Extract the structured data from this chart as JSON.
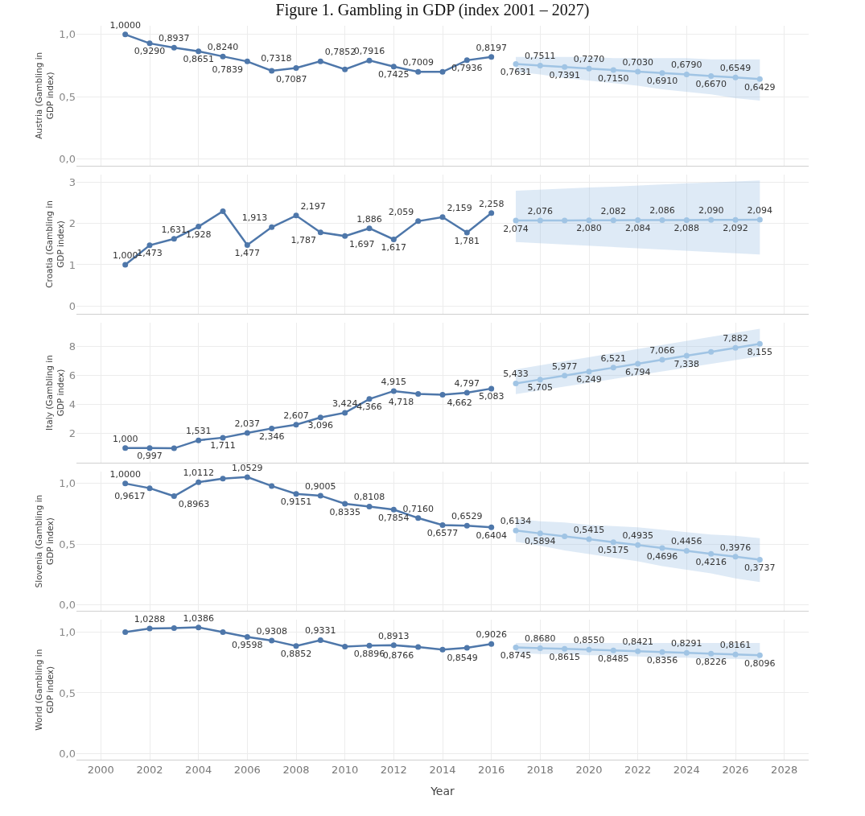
{
  "chart_data": [
    {
      "type": "line",
      "title": "Figure 1. Gambling in GDP (index 2001 – 2027)",
      "ylabel": "Austria (Gambling in GDP index)",
      "xlim": [
        1999,
        2029
      ],
      "xticks": [
        2000,
        2002,
        2004,
        2006,
        2008,
        2010,
        2012,
        2014,
        2016,
        2018,
        2020,
        2022,
        2024,
        2026,
        2028
      ],
      "ylim": [
        -0.05,
        1.07
      ],
      "yticks": [
        {
          "value": 0,
          "label": "0,0"
        },
        {
          "value": 0.5,
          "label": "0,5"
        },
        {
          "value": 1,
          "label": "1,0"
        }
      ],
      "tick_labels": "y",
      "grid": true,
      "marker": "circle",
      "line_style": "solid",
      "series": [
        {
          "color": "#4e77aa",
          "x": [
            2001,
            2002,
            2003,
            2004,
            2005,
            2006,
            2007,
            2008,
            2009,
            2010,
            2011,
            2012,
            2013,
            2014,
            2015,
            2016
          ],
          "values": [
            1.0,
            0.929,
            0.8937,
            0.8651,
            0.824,
            0.7839,
            0.7087,
            0.7318,
            0.7852,
            0.72,
            0.7916,
            0.7425,
            0.7009,
            0.7,
            0.7936,
            0.8197
          ],
          "value_labels": [
            "1,0000",
            "0,9290",
            "0,8937",
            "0,8651",
            "0,8240",
            "0,7839",
            "0,7087",
            "0,7318",
            "0,7852",
            null,
            "0,7916",
            "0,7425",
            "0,7009",
            null,
            "0,7936",
            "0,8197"
          ]
        },
        {
          "color": "#a0c4e4",
          "x": [
            2017,
            2018,
            2019,
            2020,
            2021,
            2022,
            2023,
            2024,
            2025,
            2026,
            2027
          ],
          "values": [
            0.7631,
            0.7511,
            0.7391,
            0.727,
            0.715,
            0.703,
            0.691,
            0.679,
            0.667,
            0.6549,
            0.6429
          ],
          "value_labels": [
            "0,7631",
            "0,7511",
            "0,7391",
            "0,7270",
            "0,7150",
            "0,7030",
            "0,6910",
            "0,6790",
            "0,6670",
            "0,6549",
            "0,6429"
          ],
          "lower": [
            0.7,
            0.68,
            0.65,
            0.63,
            0.61,
            0.59,
            0.56,
            0.54,
            0.52,
            0.49,
            0.47
          ],
          "upper": [
            0.82,
            0.82,
            0.82,
            0.82,
            0.81,
            0.81,
            0.81,
            0.81,
            0.8,
            0.8,
            0.8
          ]
        }
      ]
    },
    {
      "type": "line",
      "ylabel": "Croatia (Gambling in GDP index)",
      "xlim": [
        1999,
        2029
      ],
      "xticks": [
        2000,
        2002,
        2004,
        2006,
        2008,
        2010,
        2012,
        2014,
        2016,
        2018,
        2020,
        2022,
        2024,
        2026,
        2028
      ],
      "ylim": [
        -0.2,
        3.2
      ],
      "yticks": [
        0,
        1,
        2,
        3
      ],
      "tick_labels": "y",
      "grid": true,
      "marker": "circle",
      "line_style": "solid",
      "series": [
        {
          "color": "#4e77aa",
          "x": [
            2001,
            2002,
            2003,
            2004,
            2005,
            2006,
            2007,
            2008,
            2009,
            2010,
            2011,
            2012,
            2013,
            2014,
            2015,
            2016
          ],
          "values": [
            1.0,
            1.473,
            1.631,
            1.928,
            2.3,
            1.477,
            1.913,
            2.197,
            1.787,
            1.697,
            1.886,
            1.617,
            2.059,
            2.159,
            1.781,
            2.258
          ],
          "value_labels": [
            "1,000",
            "1,473",
            "1,631",
            "1,928",
            null,
            "1,477",
            "1,913",
            "2,197",
            "1,787",
            "1,697",
            "1,886",
            "1,617",
            "2,059",
            "2,159",
            "1,781",
            "2,258"
          ]
        },
        {
          "color": "#a0c4e4",
          "x": [
            2017,
            2018,
            2019,
            2020,
            2021,
            2022,
            2023,
            2024,
            2025,
            2026,
            2027
          ],
          "values": [
            2.074,
            2.076,
            2.078,
            2.08,
            2.082,
            2.084,
            2.086,
            2.088,
            2.09,
            2.092,
            2.094
          ],
          "value_labels": [
            "2,074",
            "2,076",
            null,
            "2,080",
            "2,082",
            "2,084",
            "2,086",
            "2,088",
            "2,090",
            "2,092",
            "2,094"
          ],
          "lower": [
            1.55,
            1.52,
            1.49,
            1.46,
            1.43,
            1.4,
            1.37,
            1.34,
            1.31,
            1.28,
            1.25
          ],
          "upper": [
            2.8,
            2.83,
            2.85,
            2.88,
            2.9,
            2.93,
            2.95,
            2.98,
            3.0,
            3.03,
            3.05
          ]
        }
      ]
    },
    {
      "type": "line",
      "ylabel": "Italy (Gambling in GDP index)",
      "xlim": [
        1999,
        2029
      ],
      "xticks": [
        2000,
        2002,
        2004,
        2006,
        2008,
        2010,
        2012,
        2014,
        2016,
        2018,
        2020,
        2022,
        2024,
        2026,
        2028
      ],
      "ylim": [
        0,
        9.6
      ],
      "yticks": [
        2,
        4,
        6,
        8
      ],
      "tick_labels": "y",
      "grid": true,
      "marker": "circle",
      "line_style": "solid",
      "series": [
        {
          "color": "#4e77aa",
          "x": [
            2001,
            2002,
            2003,
            2004,
            2005,
            2006,
            2007,
            2008,
            2009,
            2010,
            2011,
            2012,
            2013,
            2014,
            2015,
            2016
          ],
          "values": [
            1.0,
            0.997,
            0.98,
            1.531,
            1.711,
            2.037,
            2.346,
            2.607,
            3.096,
            3.424,
            4.366,
            4.915,
            4.718,
            4.662,
            4.797,
            5.083
          ],
          "value_labels": [
            "1,000",
            "0,997",
            null,
            "1,531",
            "1,711",
            "2,037",
            "2,346",
            "2,607",
            "3,096",
            "3,424",
            "4,366",
            "4,915",
            "4,718",
            "4,662",
            "4,797",
            "5,083"
          ]
        },
        {
          "color": "#a0c4e4",
          "x": [
            2017,
            2018,
            2019,
            2020,
            2021,
            2022,
            2023,
            2024,
            2025,
            2026,
            2027
          ],
          "values": [
            5.433,
            5.705,
            5.977,
            6.249,
            6.521,
            6.794,
            7.066,
            7.338,
            7.61,
            7.882,
            8.155
          ],
          "value_labels": [
            "5,433",
            "5,705",
            "5,977",
            "6,249",
            "6,521",
            "6,794",
            "7,066",
            "7,338",
            null,
            "7,882",
            "8,155"
          ],
          "lower": [
            4.7,
            4.96,
            5.22,
            5.48,
            5.74,
            6.0,
            6.26,
            6.52,
            6.78,
            7.04,
            7.3
          ],
          "upper": [
            6.4,
            6.68,
            6.96,
            7.24,
            7.52,
            7.8,
            8.08,
            8.36,
            8.64,
            8.92,
            9.2
          ]
        }
      ]
    },
    {
      "type": "line",
      "ylabel": "Slovenia (Gambling in GDP index)",
      "xlim": [
        1999,
        2029
      ],
      "xticks": [
        2000,
        2002,
        2004,
        2006,
        2008,
        2010,
        2012,
        2014,
        2016,
        2018,
        2020,
        2022,
        2024,
        2026,
        2028
      ],
      "ylim": [
        -0.05,
        1.1
      ],
      "yticks": [
        {
          "value": 0,
          "label": "0,0"
        },
        {
          "value": 0.5,
          "label": "0,5"
        },
        {
          "value": 1,
          "label": "1,0"
        }
      ],
      "tick_labels": "y",
      "grid": true,
      "marker": "circle",
      "line_style": "solid",
      "series": [
        {
          "color": "#4e77aa",
          "x": [
            2001,
            2002,
            2003,
            2004,
            2005,
            2006,
            2007,
            2008,
            2009,
            2010,
            2011,
            2012,
            2013,
            2014,
            2015,
            2016
          ],
          "values": [
            1.0,
            0.9617,
            0.8963,
            1.0112,
            1.04,
            1.0529,
            0.98,
            0.9151,
            0.9005,
            0.8335,
            0.8108,
            0.7854,
            0.716,
            0.6577,
            0.6529,
            0.6404
          ],
          "value_labels": [
            "1,0000",
            "0,9617",
            "0,8963",
            "1,0112",
            null,
            "1,0529",
            null,
            "0,9151",
            "0,9005",
            "0,8335",
            "0,8108",
            "0,7854",
            "0,7160",
            "0,6577",
            "0,6529",
            "0,6404"
          ]
        },
        {
          "color": "#a0c4e4",
          "x": [
            2017,
            2018,
            2019,
            2020,
            2021,
            2022,
            2023,
            2024,
            2025,
            2026,
            2027
          ],
          "values": [
            0.6134,
            0.5894,
            0.5654,
            0.5415,
            0.5175,
            0.4935,
            0.4696,
            0.4456,
            0.4216,
            0.3976,
            0.3737
          ],
          "value_labels": [
            "0,6134",
            "0,5894",
            null,
            "0,5415",
            "0,5175",
            "0,4935",
            "0,4696",
            "0,4456",
            "0,4216",
            "0,3976",
            "0,3737"
          ],
          "lower": [
            0.52,
            0.49,
            0.45,
            0.42,
            0.39,
            0.36,
            0.32,
            0.29,
            0.26,
            0.22,
            0.19
          ],
          "upper": [
            0.71,
            0.69,
            0.68,
            0.66,
            0.65,
            0.64,
            0.62,
            0.6,
            0.58,
            0.57,
            0.55
          ]
        }
      ]
    },
    {
      "type": "line",
      "ylabel": "World (Gambling in GDP index)",
      "xlabel": "Year",
      "xlim": [
        1999,
        2029
      ],
      "xticks": [
        2000,
        2002,
        2004,
        2006,
        2008,
        2010,
        2012,
        2014,
        2016,
        2018,
        2020,
        2022,
        2024,
        2026,
        2028
      ],
      "ylim": [
        -0.05,
        1.1
      ],
      "yticks": [
        {
          "value": 0,
          "label": "0,0"
        },
        {
          "value": 0.5,
          "label": "0,5"
        },
        {
          "value": 1,
          "label": "1,0"
        }
      ],
      "grid": true,
      "marker": "circle",
      "line_style": "solid",
      "series": [
        {
          "color": "#4e77aa",
          "x": [
            2001,
            2002,
            2003,
            2004,
            2005,
            2006,
            2007,
            2008,
            2009,
            2010,
            2011,
            2012,
            2013,
            2014,
            2015,
            2016
          ],
          "values": [
            1.0,
            1.0288,
            1.033,
            1.0386,
            1.0,
            0.9598,
            0.9308,
            0.8852,
            0.9331,
            0.88,
            0.8896,
            0.8913,
            0.8766,
            0.8549,
            0.87,
            0.9026
          ],
          "value_labels": [
            null,
            "1,0288",
            null,
            "1,0386",
            null,
            "0,9598",
            "0,9308",
            "0,8852",
            "0,9331",
            null,
            "0,8896",
            "0,8913",
            "0,8766",
            "0,8549",
            null,
            "0,9026"
          ]
        },
        {
          "color": "#a0c4e4",
          "x": [
            2017,
            2018,
            2019,
            2020,
            2021,
            2022,
            2023,
            2024,
            2025,
            2026,
            2027
          ],
          "values": [
            0.8745,
            0.868,
            0.8615,
            0.855,
            0.8485,
            0.8421,
            0.8356,
            0.8291,
            0.8226,
            0.8161,
            0.8096
          ],
          "value_labels": [
            "0,8745",
            "0,8680",
            "0,8615",
            "0,8550",
            "0,8485",
            "0,8421",
            "0,8356",
            "0,8291",
            "0,8226",
            "0,8161",
            "0,8096"
          ],
          "lower": [
            0.83,
            0.82,
            0.82,
            0.81,
            0.81,
            0.8,
            0.79,
            0.79,
            0.78,
            0.78,
            0.77
          ],
          "upper": [
            0.91,
            0.91,
            0.91,
            0.91,
            0.91,
            0.91,
            0.91,
            0.91,
            0.91,
            0.91,
            0.91
          ]
        }
      ]
    }
  ]
}
